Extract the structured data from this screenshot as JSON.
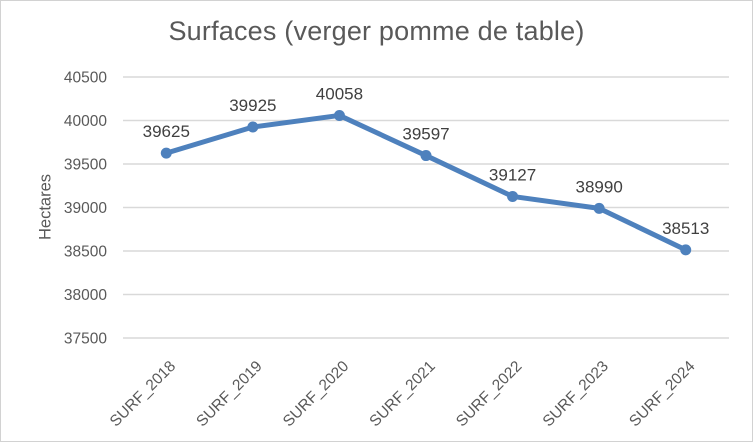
{
  "chart_data": {
    "type": "line",
    "title": "Surfaces (verger pomme de table)",
    "ylabel": "Hectares",
    "xlabel": "",
    "categories": [
      "SURF_2018",
      "SURF_2019",
      "SURF_2020",
      "SURF_2021",
      "SURF_2022",
      "SURF_2023",
      "SURF_2024"
    ],
    "values": [
      39625,
      39925,
      40058,
      39597,
      39127,
      38990,
      38513
    ],
    "ylim": [
      37500,
      40500
    ],
    "ytick_step": 500,
    "yticks": [
      37500,
      38000,
      38500,
      39000,
      39500,
      40000,
      40500
    ],
    "grid": "horizontal",
    "legend": "none",
    "data_labels": "above",
    "marker": "circle",
    "colors": {
      "line": "#4E81BD",
      "grid": "#D9D9D9",
      "tick_label": "#595959",
      "category_label": "#595959",
      "data_label": "#404040",
      "title": "#595959",
      "frame_border": "#D2D2D2",
      "background": "#FFFFFF"
    }
  }
}
